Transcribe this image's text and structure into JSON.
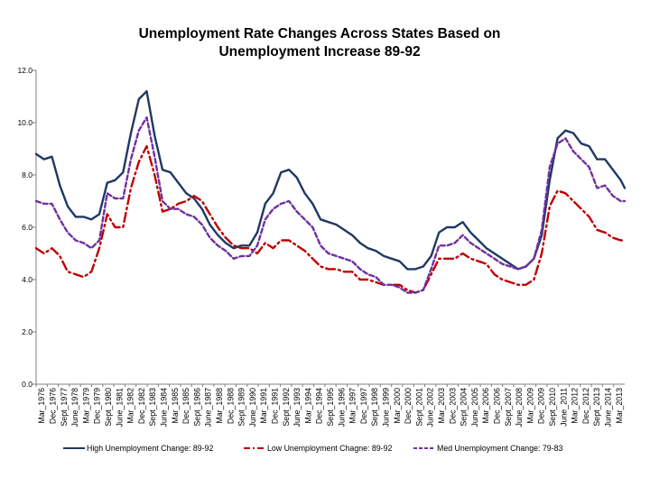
{
  "chart_data": {
    "type": "line",
    "title_lines": [
      "Unemployment Rate Changes Across States Based on",
      "Unemployment Increase 89-92"
    ],
    "title": "Unemployment Rate Changes Across States Based on Unemployment Increase 89-92",
    "xlabel": "",
    "ylabel": "",
    "ylim": [
      0,
      12
    ],
    "y_ticks": [
      "0.0",
      "2.0",
      "4.0",
      "6.0",
      "8.0",
      "10.0",
      "12.0"
    ],
    "grid": false,
    "legend_position": "bottom",
    "x_start": 1976.0,
    "x_end": 2013.25,
    "x_tick_labels": [
      "Mar_1976",
      "Dec_1976",
      "Sept_1977",
      "June_1978",
      "Mar_1979",
      "Dec_1979",
      "Sept_1980",
      "June_1981",
      "Mar_1982",
      "Dec_1982",
      "Sept_1983",
      "June_1984",
      "Mar_1985",
      "Dec_1985",
      "Sept_1986",
      "June_1987",
      "Mar_1988",
      "Dec_1988",
      "Sept_1989",
      "June_1990",
      "Mar_1991",
      "Dec_1991",
      "Sept_1992",
      "June_1993",
      "Mar_1994",
      "Dec_1994",
      "Sept_1995",
      "June_1996",
      "Mar_1997",
      "Dec_1997",
      "Sept_1998",
      "June_1999",
      "Mar_2000",
      "Dec_2000",
      "Sept_2001",
      "June_2002",
      "Mar_2003",
      "Dec_2003",
      "Sept_2004",
      "June_2005",
      "Mar_2006",
      "Dec_2006",
      "Sept_2007",
      "June_2008",
      "Mar_2009",
      "Dec_2009",
      "Sept_2010",
      "June_2011",
      "Mar_2012",
      "Dec_2012",
      "Sept_2013",
      "June_2014",
      "Mar_2013"
    ],
    "series": [
      {
        "name": "High Unemployment Change: 89-92",
        "color": "#1f3864",
        "dash": "solid",
        "x": [
          1976.0,
          1976.5,
          1977.0,
          1977.5,
          1978.0,
          1978.5,
          1979.0,
          1979.5,
          1980.0,
          1980.5,
          1981.0,
          1981.5,
          1982.0,
          1982.5,
          1983.0,
          1983.5,
          1984.0,
          1984.5,
          1985.0,
          1985.5,
          1986.0,
          1986.5,
          1987.0,
          1987.5,
          1988.0,
          1988.5,
          1989.0,
          1989.5,
          1990.0,
          1990.5,
          1991.0,
          1991.5,
          1992.0,
          1992.5,
          1993.0,
          1993.5,
          1994.0,
          1994.5,
          1995.0,
          1995.5,
          1996.0,
          1996.5,
          1997.0,
          1997.5,
          1998.0,
          1998.5,
          1999.0,
          1999.5,
          2000.0,
          2000.5,
          2001.0,
          2001.5,
          2002.0,
          2002.5,
          2003.0,
          2003.5,
          2004.0,
          2004.5,
          2005.0,
          2005.5,
          2006.0,
          2006.5,
          2007.0,
          2007.5,
          2008.0,
          2008.5,
          2009.0,
          2009.5,
          2010.0,
          2010.5,
          2011.0,
          2011.5,
          2012.0,
          2012.5,
          2013.0,
          2013.25
        ],
        "values": [
          8.8,
          8.6,
          8.7,
          7.6,
          6.8,
          6.4,
          6.4,
          6.3,
          6.5,
          7.7,
          7.8,
          8.1,
          9.6,
          10.9,
          11.2,
          9.5,
          8.2,
          8.1,
          7.7,
          7.3,
          7.1,
          6.7,
          6.1,
          5.7,
          5.4,
          5.2,
          5.3,
          5.3,
          5.8,
          6.9,
          7.3,
          8.1,
          8.2,
          7.9,
          7.3,
          6.9,
          6.3,
          6.2,
          6.1,
          5.9,
          5.7,
          5.4,
          5.2,
          5.1,
          4.9,
          4.8,
          4.7,
          4.4,
          4.4,
          4.5,
          4.9,
          5.8,
          6.0,
          6.0,
          6.2,
          5.8,
          5.5,
          5.2,
          5.0,
          4.8,
          4.6,
          4.4,
          4.5,
          4.8,
          5.7,
          7.8,
          9.4,
          9.7,
          9.6,
          9.2,
          9.1,
          8.6,
          8.6,
          8.2,
          7.8,
          7.5
        ]
      },
      {
        "name": "Low Unemployment Chagne: 89-92",
        "color": "#c00000",
        "dash": "dashdot",
        "x": [
          1976.0,
          1976.5,
          1977.0,
          1977.5,
          1978.0,
          1978.5,
          1979.0,
          1979.5,
          1980.0,
          1980.5,
          1981.0,
          1981.5,
          1982.0,
          1982.5,
          1983.0,
          1983.5,
          1984.0,
          1984.5,
          1985.0,
          1985.5,
          1986.0,
          1986.5,
          1987.0,
          1987.5,
          1988.0,
          1988.5,
          1989.0,
          1989.5,
          1990.0,
          1990.5,
          1991.0,
          1991.5,
          1992.0,
          1992.5,
          1993.0,
          1993.5,
          1994.0,
          1994.5,
          1995.0,
          1995.5,
          1996.0,
          1996.5,
          1997.0,
          1997.5,
          1998.0,
          1998.5,
          1999.0,
          1999.5,
          2000.0,
          2000.5,
          2001.0,
          2001.5,
          2002.0,
          2002.5,
          2003.0,
          2003.5,
          2004.0,
          2004.5,
          2005.0,
          2005.5,
          2006.0,
          2006.5,
          2007.0,
          2007.5,
          2008.0,
          2008.5,
          2009.0,
          2009.5,
          2010.0,
          2010.5,
          2011.0,
          2011.5,
          2012.0,
          2012.5,
          2013.0,
          2013.25
        ],
        "values": [
          5.2,
          5.0,
          5.2,
          4.9,
          4.3,
          4.2,
          4.1,
          4.3,
          5.2,
          6.5,
          6.0,
          6.0,
          7.5,
          8.5,
          9.1,
          8.0,
          6.6,
          6.7,
          6.9,
          7.0,
          7.2,
          7.0,
          6.5,
          6.0,
          5.6,
          5.3,
          5.2,
          5.2,
          5.0,
          5.4,
          5.2,
          5.5,
          5.5,
          5.3,
          5.1,
          4.8,
          4.5,
          4.4,
          4.4,
          4.3,
          4.3,
          4.0,
          4.0,
          3.9,
          3.8,
          3.8,
          3.8,
          3.6,
          3.5,
          3.6,
          4.2,
          4.8,
          4.8,
          4.8,
          5.0,
          4.8,
          4.7,
          4.6,
          4.2,
          4.0,
          3.9,
          3.8,
          3.8,
          4.0,
          5.0,
          6.8,
          7.4,
          7.3,
          7.0,
          6.7,
          6.4,
          5.9,
          5.8,
          5.6,
          5.5,
          5.5
        ]
      },
      {
        "name": "Med Unemployment Change: 79-83",
        "color": "#7030a0",
        "dash": "dash",
        "x": [
          1976.0,
          1976.5,
          1977.0,
          1977.5,
          1978.0,
          1978.5,
          1979.0,
          1979.5,
          1980.0,
          1980.5,
          1981.0,
          1981.5,
          1982.0,
          1982.5,
          1983.0,
          1983.5,
          1984.0,
          1984.5,
          1985.0,
          1985.5,
          1986.0,
          1986.5,
          1987.0,
          1987.5,
          1988.0,
          1988.5,
          1989.0,
          1989.5,
          1990.0,
          1990.5,
          1991.0,
          1991.5,
          1992.0,
          1992.5,
          1993.0,
          1993.5,
          1994.0,
          1994.5,
          1995.0,
          1995.5,
          1996.0,
          1996.5,
          1997.0,
          1997.5,
          1998.0,
          1998.5,
          1999.0,
          1999.5,
          2000.0,
          2000.5,
          2001.0,
          2001.5,
          2002.0,
          2002.5,
          2003.0,
          2003.5,
          2004.0,
          2004.5,
          2005.0,
          2005.5,
          2006.0,
          2006.5,
          2007.0,
          2007.5,
          2008.0,
          2008.5,
          2009.0,
          2009.5,
          2010.0,
          2010.5,
          2011.0,
          2011.5,
          2012.0,
          2012.5,
          2013.0,
          2013.25
        ],
        "values": [
          7.0,
          6.9,
          6.9,
          6.3,
          5.8,
          5.5,
          5.4,
          5.2,
          5.5,
          7.3,
          7.1,
          7.1,
          8.6,
          9.7,
          10.2,
          8.7,
          7.0,
          6.7,
          6.7,
          6.5,
          6.4,
          6.1,
          5.6,
          5.3,
          5.1,
          4.8,
          4.9,
          4.9,
          5.3,
          6.3,
          6.7,
          6.9,
          7.0,
          6.6,
          6.3,
          6.0,
          5.3,
          5.0,
          4.9,
          4.8,
          4.7,
          4.4,
          4.2,
          4.1,
          3.8,
          3.8,
          3.7,
          3.5,
          3.5,
          3.6,
          4.4,
          5.3,
          5.3,
          5.4,
          5.7,
          5.4,
          5.2,
          5.0,
          4.8,
          4.6,
          4.5,
          4.4,
          4.5,
          4.8,
          5.9,
          8.3,
          9.2,
          9.4,
          8.9,
          8.6,
          8.3,
          7.5,
          7.6,
          7.2,
          7.0,
          7.0
        ]
      }
    ]
  }
}
